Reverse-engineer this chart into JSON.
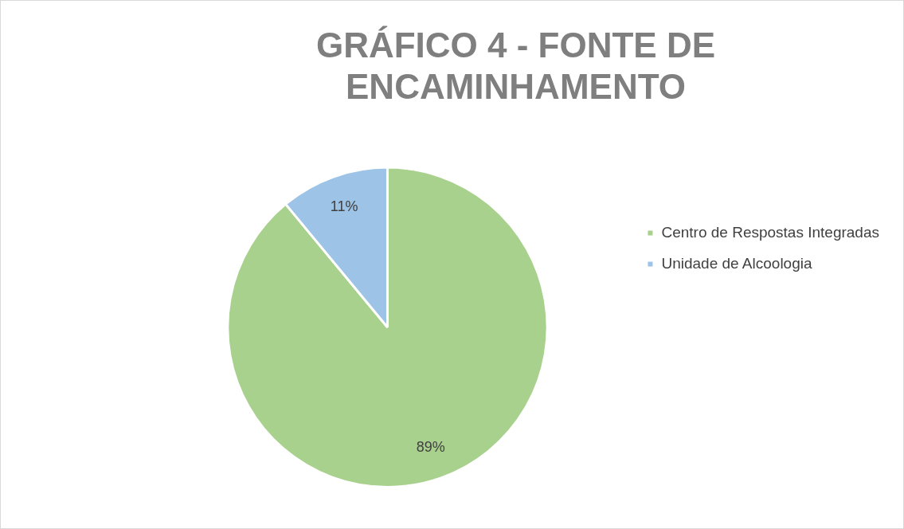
{
  "chart_data": {
    "type": "pie",
    "title": [
      "GRÁFICO 4 - FONTE DE",
      "ENCAMINHAMENTO"
    ],
    "categories": [
      "Centro de Respostas Integradas",
      "Unidade de Alcoologia"
    ],
    "values": [
      89,
      11
    ],
    "colors": [
      "#a9d18e",
      "#9dc3e6"
    ],
    "value_labels": [
      "89%",
      "11%"
    ],
    "legend": "right"
  }
}
